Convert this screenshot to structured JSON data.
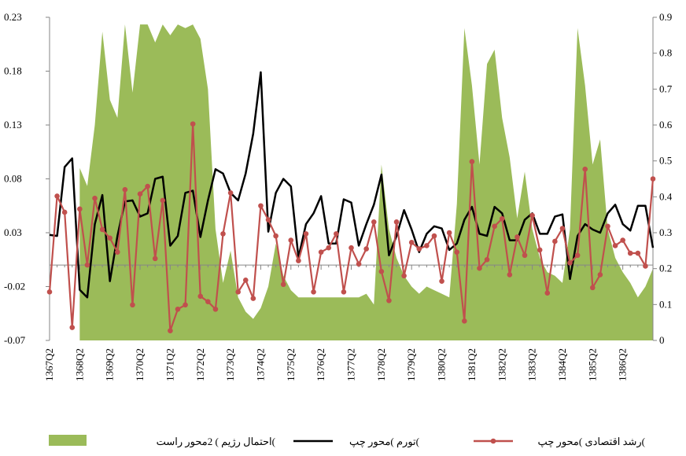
{
  "chart_data": {
    "type": "line",
    "categories": [
      "1367Q2",
      null,
      null,
      null,
      "1368Q2",
      null,
      null,
      null,
      "1369Q2",
      null,
      null,
      null,
      "1370Q2",
      null,
      null,
      null,
      "1371Q2",
      null,
      null,
      null,
      "1372Q2",
      null,
      null,
      null,
      "1373Q2",
      null,
      null,
      null,
      "1374Q2",
      null,
      null,
      null,
      "1375Q2",
      null,
      null,
      null,
      "1376Q2",
      null,
      null,
      null,
      "1377Q2",
      null,
      null,
      null,
      "1378Q2",
      null,
      null,
      null,
      "1379Q2",
      null,
      null,
      null,
      "1380Q2",
      null,
      null,
      null,
      "1381Q2",
      null,
      null,
      null,
      "1382Q2",
      null,
      null,
      null,
      "1383Q2",
      null,
      null,
      null,
      "1384Q2",
      null,
      null,
      null,
      "1385Q2",
      null,
      null,
      null,
      "1386Q2",
      null,
      null,
      null,
      null
    ],
    "ylim": [
      -0.07,
      0.23
    ],
    "yticks": [
      -0.07,
      -0.02,
      0.03,
      0.08,
      0.13,
      0.18,
      0.23
    ],
    "y2lim": [
      0,
      0.9
    ],
    "y2ticks": [
      0,
      0.1,
      0.2,
      0.3,
      0.4,
      0.5,
      0.6,
      0.7,
      0.8,
      0.9
    ],
    "series": [
      {
        "name": "احتمال رژیم ) 2محور راست(",
        "type": "area",
        "axis": "y2",
        "color": "#9bbb59",
        "values": [
          null,
          null,
          null,
          null,
          0.48,
          0.43,
          0.6,
          0.86,
          0.67,
          0.62,
          0.88,
          0.69,
          0.88,
          0.88,
          0.83,
          0.88,
          0.85,
          0.88,
          0.87,
          0.88,
          0.84,
          0.7,
          0.31,
          0.16,
          0.25,
          0.12,
          0.08,
          0.06,
          0.09,
          0.15,
          0.27,
          0.18,
          0.14,
          0.12,
          0.12,
          0.12,
          0.12,
          0.12,
          0.12,
          0.12,
          0.12,
          0.12,
          0.13,
          0.1,
          0.49,
          0.31,
          0.23,
          0.18,
          0.15,
          0.13,
          0.15,
          0.14,
          0.13,
          0.12,
          0.38,
          0.87,
          0.71,
          0.49,
          0.77,
          0.81,
          0.62,
          0.51,
          0.34,
          0.47,
          0.31,
          0.23,
          0.19,
          0.18,
          0.16,
          0.31,
          0.87,
          0.71,
          0.49,
          0.56,
          0.31,
          0.23,
          0.19,
          0.16,
          0.12,
          0.15,
          0.2
        ]
      },
      {
        "name": "تورم )محور چپ(",
        "type": "line",
        "color": "#000000",
        "values": [
          0.028,
          0.027,
          0.091,
          0.099,
          -0.023,
          -0.03,
          0.038,
          0.065,
          -0.015,
          0.027,
          0.059,
          0.06,
          0.045,
          0.048,
          0.08,
          0.082,
          0.018,
          0.027,
          0.067,
          0.069,
          0.026,
          0.06,
          0.089,
          0.085,
          0.067,
          0.06,
          0.085,
          0.122,
          0.179,
          0.031,
          0.067,
          0.08,
          0.073,
          0.007,
          0.038,
          0.048,
          0.064,
          0.02,
          0.02,
          0.061,
          0.058,
          0.018,
          0.038,
          0.056,
          0.084,
          0.009,
          0.027,
          0.051,
          0.033,
          0.012,
          0.029,
          0.036,
          0.034,
          0.014,
          0.02,
          0.042,
          0.054,
          0.029,
          0.027,
          0.054,
          0.048,
          0.023,
          0.023,
          0.042,
          0.048,
          0.029,
          0.029,
          0.045,
          0.047,
          -0.013,
          0.027,
          0.038,
          0.033,
          0.03,
          0.048,
          0.056,
          0.038,
          0.032,
          0.055,
          0.055,
          0.016
        ]
      },
      {
        "name": "رشد اقتصادی )محور چپ(",
        "type": "line-marker",
        "color": "#c0504d",
        "values": [
          -0.025,
          0.064,
          0.049,
          -0.058,
          0.052,
          0.0,
          0.062,
          0.033,
          0.025,
          0.012,
          0.07,
          -0.037,
          0.066,
          0.073,
          0.006,
          0.06,
          -0.061,
          -0.041,
          -0.037,
          0.131,
          -0.029,
          -0.034,
          -0.041,
          0.029,
          0.067,
          -0.025,
          -0.014,
          -0.031,
          0.055,
          0.042,
          0.027,
          -0.018,
          0.023,
          0.004,
          0.029,
          -0.025,
          0.012,
          0.016,
          0.029,
          -0.025,
          0.016,
          0.001,
          0.015,
          0.04,
          -0.006,
          -0.033,
          0.04,
          -0.01,
          0.021,
          0.015,
          0.018,
          0.027,
          -0.015,
          0.03,
          0.012,
          -0.052,
          0.096,
          -0.003,
          0.005,
          0.036,
          0.043,
          -0.009,
          0.026,
          0.009,
          0.046,
          0.014,
          -0.026,
          0.022,
          0.034,
          0.002,
          0.009,
          0.089,
          -0.021,
          -0.009,
          0.036,
          0.018,
          0.023,
          0.011,
          0.011,
          -0.001,
          0.08
        ]
      }
    ]
  }
}
